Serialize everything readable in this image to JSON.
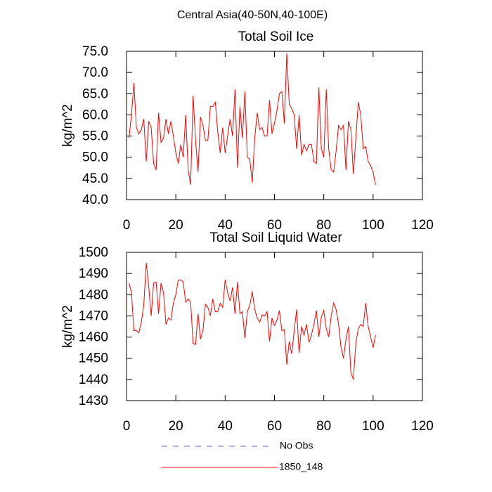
{
  "title": "Central Asia(40-50N,40-100E)",
  "legend": [
    {
      "name": "No Obs",
      "color": "#6a5acd",
      "dash": true
    },
    {
      "name": "1850_148",
      "color": "#ff0000",
      "dash": false
    }
  ],
  "chart_data": [
    {
      "type": "line",
      "title": "Total Soil Ice",
      "y_label": "kg/m^2",
      "x": [
        1,
        2,
        3,
        4,
        5,
        6,
        7,
        8,
        9,
        10,
        11,
        12,
        13,
        14,
        15,
        16,
        17,
        18,
        19,
        20,
        21,
        22,
        23,
        24,
        25,
        26,
        27,
        28,
        29,
        30,
        31,
        32,
        33,
        34,
        35,
        36,
        37,
        38,
        39,
        40,
        41,
        42,
        43,
        44,
        45,
        46,
        47,
        48,
        49,
        50,
        51,
        52,
        53,
        54,
        55,
        56,
        57,
        58,
        59,
        60,
        61,
        62,
        63,
        64,
        65,
        66,
        67,
        68,
        69,
        70,
        71,
        72,
        73,
        74,
        75,
        76,
        77,
        78,
        79,
        80,
        81,
        82,
        83,
        84,
        85,
        86,
        87,
        88,
        89,
        90,
        91,
        92,
        93,
        94,
        95,
        96,
        97,
        98,
        99,
        100,
        101
      ],
      "series": [
        {
          "color": "#ff0000",
          "values": [
            54.5,
            60,
            67.5,
            57,
            55.5,
            56.5,
            59,
            49,
            58.5,
            57,
            48.5,
            47,
            60.5,
            53.5,
            54.5,
            59,
            55.5,
            58.5,
            55,
            51,
            48.5,
            53,
            50,
            60,
            47,
            43.5,
            64.5,
            54,
            46.5,
            59.5,
            57.5,
            54,
            54,
            62,
            62,
            63,
            56,
            51,
            57,
            51,
            55,
            59,
            55,
            66,
            47.5,
            62,
            54.5,
            65.5,
            50,
            49.5,
            44,
            54.5,
            60.5,
            56.5,
            57,
            55,
            55,
            63.5,
            55.5,
            58,
            61,
            65,
            65.5,
            58,
            74.5,
            62.5,
            61.5,
            60,
            52,
            60,
            50.5,
            53,
            51.5,
            53,
            53,
            49,
            48.5,
            66.5,
            52,
            50,
            66,
            52,
            47,
            46.5,
            51.5,
            57.5,
            56.5,
            57.5,
            47,
            58.5,
            56.5,
            46,
            54.5,
            63,
            60,
            52,
            52.5,
            49,
            48,
            46.5,
            43.5
          ]
        }
      ],
      "xlim": [
        0,
        120
      ],
      "xticks": [
        0,
        20,
        40,
        60,
        80,
        100,
        120
      ],
      "ylim": [
        40,
        75
      ],
      "yticks": [
        {
          "value": 40,
          "label": "40.0"
        },
        {
          "value": 45,
          "label": "45.0"
        },
        {
          "value": 50,
          "label": "50.0"
        },
        {
          "value": 55,
          "label": "55.0"
        },
        {
          "value": 60,
          "label": "60.0"
        },
        {
          "value": 65,
          "label": "65.0"
        },
        {
          "value": 70,
          "label": "70.0"
        },
        {
          "value": 75,
          "label": "75.0"
        }
      ]
    },
    {
      "type": "line",
      "title": "Total Soil Liquid Water",
      "y_label": "kg/m^2",
      "x": [
        1,
        2,
        3,
        4,
        5,
        6,
        7,
        8,
        9,
        10,
        11,
        12,
        13,
        14,
        15,
        16,
        17,
        18,
        19,
        20,
        21,
        22,
        23,
        24,
        25,
        26,
        27,
        28,
        29,
        30,
        31,
        32,
        33,
        34,
        35,
        36,
        37,
        38,
        39,
        40,
        41,
        42,
        43,
        44,
        45,
        46,
        47,
        48,
        49,
        50,
        51,
        52,
        53,
        54,
        55,
        56,
        57,
        58,
        59,
        60,
        61,
        62,
        63,
        64,
        65,
        66,
        67,
        68,
        69,
        70,
        71,
        72,
        73,
        74,
        75,
        76,
        77,
        78,
        79,
        80,
        81,
        82,
        83,
        84,
        85,
        86,
        87,
        88,
        89,
        90,
        91,
        92,
        93,
        94,
        95,
        96,
        97,
        98,
        99,
        100,
        101
      ],
      "series": [
        {
          "color": "#ff0000",
          "values": [
            1485.5,
            1481,
            1463,
            1463,
            1462,
            1467,
            1475,
            1495,
            1484,
            1470,
            1485.5,
            1486,
            1471,
            1485.5,
            1481,
            1466,
            1469,
            1468,
            1476,
            1480,
            1487,
            1487,
            1486,
            1476.5,
            1478,
            1476.5,
            1457,
            1456.5,
            1471,
            1459,
            1463,
            1475.5,
            1474,
            1470,
            1478,
            1472,
            1472,
            1476,
            1474,
            1487,
            1481,
            1477,
            1483.5,
            1471,
            1486,
            1471,
            1472,
            1459.5,
            1472,
            1475,
            1481.5,
            1473,
            1469,
            1467,
            1470.5,
            1470,
            1472,
            1458,
            1469,
            1465.5,
            1468,
            1472.5,
            1463,
            1463.5,
            1447,
            1458,
            1452,
            1463,
            1473,
            1452.5,
            1465,
            1461,
            1466,
            1457.5,
            1461,
            1466,
            1472.5,
            1460,
            1469.5,
            1472.5,
            1464,
            1460,
            1470,
            1476,
            1473,
            1466,
            1455,
            1450,
            1459,
            1465,
            1443,
            1440,
            1457,
            1464,
            1466,
            1465,
            1476,
            1465,
            1460,
            1455,
            1461
          ]
        }
      ],
      "xlim": [
        0,
        120
      ],
      "xticks": [
        0,
        20,
        40,
        60,
        80,
        100,
        120
      ],
      "ylim": [
        1430,
        1500
      ],
      "yticks": [
        1430,
        1440,
        1450,
        1460,
        1470,
        1480,
        1490,
        1500
      ]
    }
  ]
}
